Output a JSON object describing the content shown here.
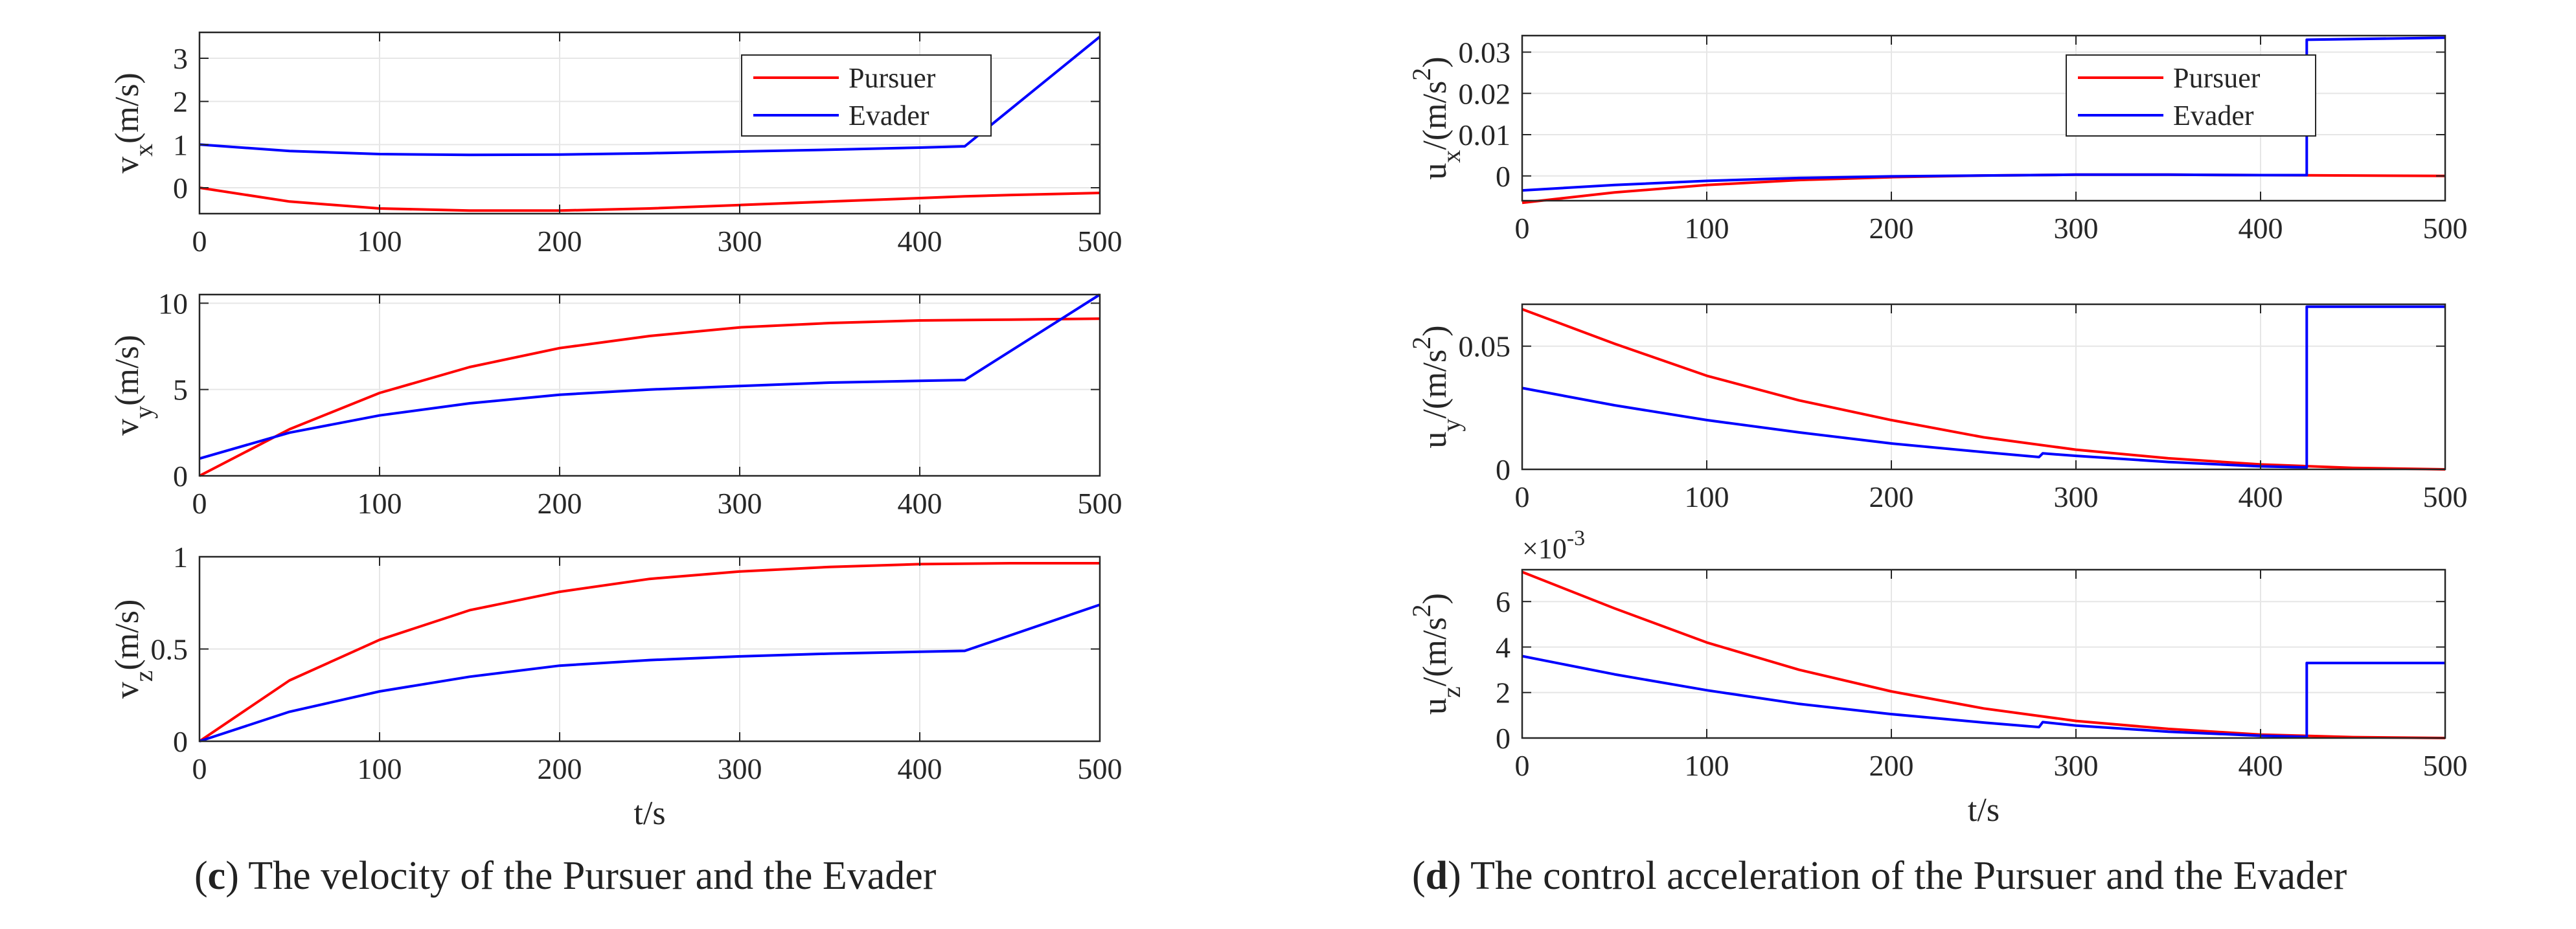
{
  "captions": {
    "c": {
      "letter": "c",
      "text": "The velocity of the Pursuer and the Evader"
    },
    "d": {
      "letter": "d",
      "text": "The control acceleration of the Pursuer and the Evader"
    }
  },
  "legend": {
    "pursuer": "Pursuer",
    "evader": "Evader"
  },
  "colors": {
    "pursuer": "#ff0000",
    "evader": "#0000ff",
    "grid": "#e6e6e6",
    "axis": "#262626"
  },
  "chart_data": [
    {
      "id": "vx",
      "type": "line",
      "ylabel": [
        "v",
        "x",
        "(m/s)",
        ""
      ],
      "xlim": [
        0,
        500
      ],
      "ylim": [
        -0.6,
        3.6
      ],
      "xticks": [
        0,
        100,
        200,
        300,
        400,
        500
      ],
      "yticks": [
        0,
        1,
        2,
        3
      ],
      "ytick_labels": [
        "0",
        "1",
        "2",
        "3"
      ],
      "xlabel": "",
      "legend": true,
      "legend_position": "top-right",
      "series": [
        {
          "name": "Pursuer",
          "x": [
            0,
            50,
            100,
            150,
            200,
            250,
            300,
            350,
            400,
            425,
            450,
            500
          ],
          "y": [
            0.0,
            -0.32,
            -0.48,
            -0.53,
            -0.53,
            -0.48,
            -0.4,
            -0.32,
            -0.24,
            -0.2,
            -0.17,
            -0.12
          ]
        },
        {
          "name": "Evader",
          "x": [
            0,
            50,
            100,
            150,
            200,
            250,
            300,
            350,
            400,
            425,
            500
          ],
          "y": [
            1.0,
            0.85,
            0.78,
            0.76,
            0.77,
            0.8,
            0.84,
            0.88,
            0.93,
            0.96,
            3.5
          ]
        }
      ]
    },
    {
      "id": "vy",
      "type": "line",
      "ylabel": [
        "v",
        "y",
        "(m/s)",
        ""
      ],
      "xlim": [
        0,
        500
      ],
      "ylim": [
        0,
        10.5
      ],
      "xticks": [
        0,
        100,
        200,
        300,
        400,
        500
      ],
      "yticks": [
        0,
        5,
        10
      ],
      "ytick_labels": [
        "0",
        "5",
        "10"
      ],
      "xlabel": "",
      "legend": false,
      "series": [
        {
          "name": "Pursuer",
          "x": [
            0,
            50,
            100,
            150,
            200,
            250,
            300,
            350,
            400,
            450,
            500
          ],
          "y": [
            0.0,
            2.7,
            4.8,
            6.3,
            7.4,
            8.1,
            8.6,
            8.85,
            9.0,
            9.05,
            9.1
          ]
        },
        {
          "name": "Evader",
          "x": [
            0,
            50,
            100,
            150,
            200,
            250,
            300,
            350,
            400,
            425,
            500
          ],
          "y": [
            1.0,
            2.5,
            3.5,
            4.2,
            4.7,
            5.0,
            5.2,
            5.4,
            5.5,
            5.55,
            10.5
          ]
        }
      ]
    },
    {
      "id": "vz",
      "type": "line",
      "ylabel": [
        "v",
        "z",
        "(m/s)",
        ""
      ],
      "xlim": [
        0,
        500
      ],
      "ylim": [
        0,
        1
      ],
      "xticks": [
        0,
        100,
        200,
        300,
        400,
        500
      ],
      "yticks": [
        0,
        0.5,
        1
      ],
      "ytick_labels": [
        "0",
        "0.5",
        "1"
      ],
      "xlabel": "t/s",
      "legend": false,
      "series": [
        {
          "name": "Pursuer",
          "x": [
            0,
            50,
            100,
            150,
            200,
            250,
            300,
            350,
            400,
            450,
            500
          ],
          "y": [
            0.0,
            0.33,
            0.55,
            0.71,
            0.81,
            0.88,
            0.92,
            0.945,
            0.96,
            0.965,
            0.965
          ]
        },
        {
          "name": "Evader",
          "x": [
            0,
            50,
            100,
            150,
            200,
            250,
            300,
            350,
            400,
            425,
            500
          ],
          "y": [
            0.0,
            0.16,
            0.27,
            0.35,
            0.41,
            0.44,
            0.46,
            0.475,
            0.485,
            0.49,
            0.74
          ]
        }
      ]
    },
    {
      "id": "ux",
      "type": "line",
      "ylabel": [
        "u",
        "x",
        "/(m/s",
        "2",
        ")"
      ],
      "xlim": [
        0,
        500
      ],
      "ylim": [
        -0.006,
        0.034
      ],
      "xticks": [
        0,
        100,
        200,
        300,
        400,
        500
      ],
      "yticks": [
        0,
        0.01,
        0.02,
        0.03
      ],
      "ytick_labels": [
        "0",
        "0.01",
        "0.02",
        "0.03"
      ],
      "xlabel": "",
      "legend": true,
      "legend_position": "top-center",
      "series": [
        {
          "name": "Pursuer",
          "x": [
            0,
            50,
            100,
            150,
            200,
            250,
            300,
            350,
            400,
            450,
            500
          ],
          "y": [
            -0.0065,
            -0.004,
            -0.0022,
            -0.001,
            -0.0003,
            0.0001,
            0.0003,
            0.0003,
            0.0002,
            0.0001,
            0.0
          ]
        },
        {
          "name": "Evader",
          "x": [
            0,
            50,
            100,
            150,
            200,
            250,
            300,
            350,
            400,
            425,
            425,
            500
          ],
          "y": [
            -0.0035,
            -0.0022,
            -0.0012,
            -0.0005,
            -0.0001,
            0.0001,
            0.0003,
            0.0003,
            0.0002,
            0.0002,
            0.033,
            0.0335
          ]
        }
      ]
    },
    {
      "id": "uy",
      "type": "line",
      "ylabel": [
        "u",
        "y",
        "/(m/s",
        "2",
        ")"
      ],
      "xlim": [
        0,
        500
      ],
      "ylim": [
        0,
        0.067
      ],
      "xticks": [
        0,
        100,
        200,
        300,
        400,
        500
      ],
      "yticks": [
        0,
        0.05
      ],
      "ytick_labels": [
        "0",
        "0.05"
      ],
      "xlabel": "",
      "legend": false,
      "series": [
        {
          "name": "Pursuer",
          "x": [
            0,
            50,
            100,
            150,
            200,
            250,
            300,
            350,
            400,
            450,
            500
          ],
          "y": [
            0.065,
            0.051,
            0.038,
            0.028,
            0.02,
            0.013,
            0.008,
            0.0045,
            0.002,
            0.0006,
            0.0
          ]
        },
        {
          "name": "Evader",
          "x": [
            0,
            50,
            100,
            150,
            200,
            250,
            280,
            282,
            300,
            350,
            400,
            425,
            425,
            500
          ],
          "y": [
            0.033,
            0.026,
            0.02,
            0.015,
            0.0105,
            0.007,
            0.005,
            0.0065,
            0.0055,
            0.003,
            0.0012,
            0.0008,
            0.066,
            0.066
          ]
        }
      ]
    },
    {
      "id": "uz",
      "type": "line",
      "ylabel": [
        "u",
        "z",
        "/(m/s",
        "2",
        ")"
      ],
      "exponent": "×10",
      "exponent_power": "-3",
      "xlim": [
        0,
        500
      ],
      "ylim": [
        0,
        7.4
      ],
      "xticks": [
        0,
        100,
        200,
        300,
        400,
        500
      ],
      "yticks": [
        0,
        2,
        4,
        6
      ],
      "ytick_labels": [
        "0",
        "2",
        "4",
        "6"
      ],
      "xlabel": "t/s",
      "legend": false,
      "series": [
        {
          "name": "Pursuer",
          "x": [
            0,
            50,
            100,
            150,
            200,
            250,
            300,
            350,
            400,
            450,
            500
          ],
          "y": [
            7.3,
            5.7,
            4.2,
            3.0,
            2.05,
            1.3,
            0.75,
            0.4,
            0.15,
            0.04,
            0.0
          ]
        },
        {
          "name": "Evader",
          "x": [
            0,
            50,
            100,
            150,
            200,
            250,
            280,
            282,
            300,
            350,
            400,
            425,
            425,
            500
          ],
          "y": [
            3.6,
            2.8,
            2.1,
            1.5,
            1.05,
            0.68,
            0.48,
            0.7,
            0.55,
            0.28,
            0.1,
            0.05,
            3.3,
            3.3
          ]
        }
      ]
    }
  ]
}
